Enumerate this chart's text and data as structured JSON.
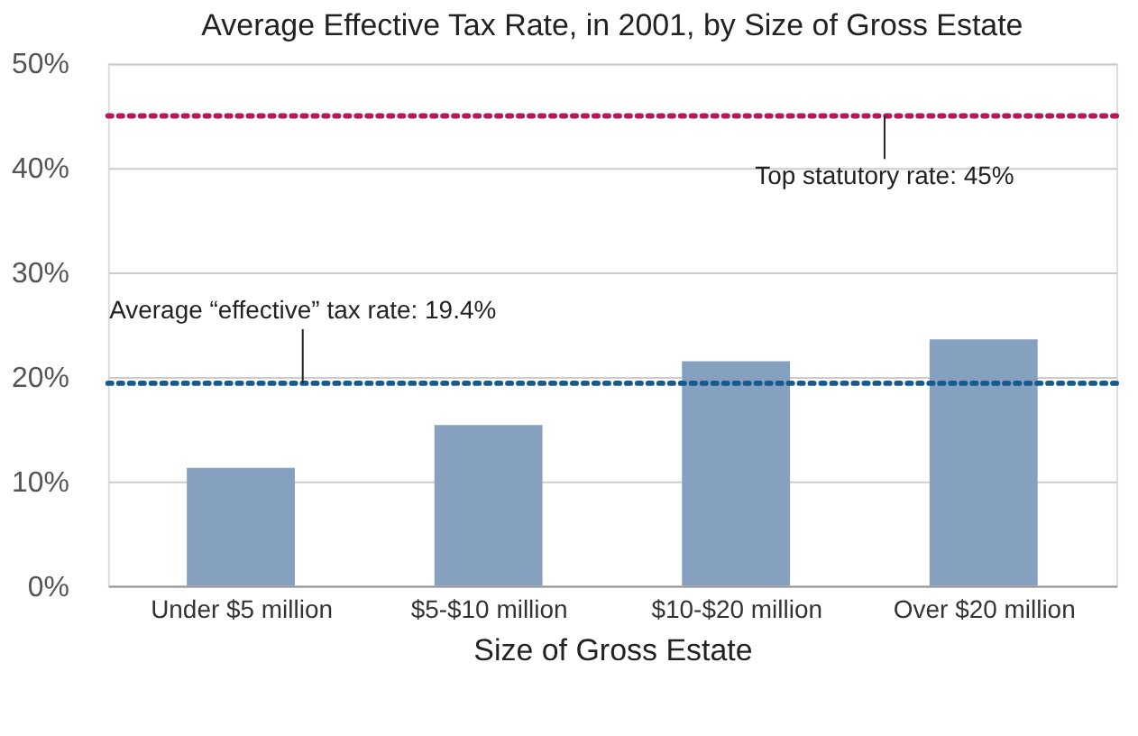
{
  "chart_data": {
    "type": "bar",
    "title": "Average Effective Tax Rate, in 2001, by Size of Gross Estate",
    "xlabel": "Size of Gross Estate",
    "categories": [
      "Under $5 million",
      "$5-$10 million",
      "$10-$20 million",
      "Over $20 million"
    ],
    "values": [
      11.3,
      15.4,
      21.5,
      23.6
    ],
    "color": "#86a0c0",
    "ylim": [
      0,
      50
    ],
    "yticks": [
      {
        "value": 0,
        "label": "0%"
      },
      {
        "value": 10,
        "label": "10%"
      },
      {
        "value": 20,
        "label": "20%"
      },
      {
        "value": 30,
        "label": "30%"
      },
      {
        "value": 40,
        "label": "40%"
      },
      {
        "value": 50,
        "label": "50%"
      }
    ],
    "grid": "y",
    "ref_lines": [
      {
        "axis": "y",
        "value": 45,
        "label": "Top statutory rate: 45%",
        "color": "#b5195a",
        "line_style": "dotted"
      },
      {
        "axis": "y",
        "value": 19.4,
        "label": "Average “effective” tax rate: 19.4%",
        "color": "#165a8e",
        "line_style": "dotted"
      }
    ]
  }
}
